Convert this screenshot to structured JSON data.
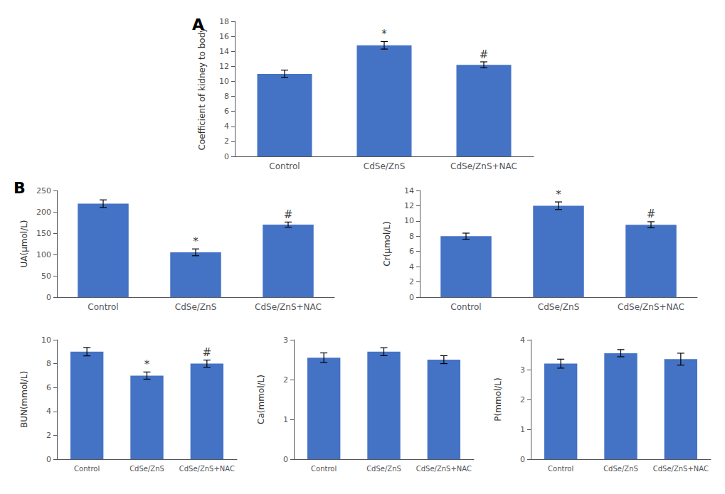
{
  "chart_data": [
    {
      "type": "bar",
      "title": "A",
      "categories": [
        "Control",
        "CdSe/ZnS",
        "CdSe/ZnS+NAC"
      ],
      "values": [
        11.0,
        14.8,
        12.2
      ],
      "errors": [
        0.5,
        0.5,
        0.4
      ],
      "color": "#4472C4",
      "ylabel": "Coefficient of kidney to body",
      "ylim": [
        0,
        18
      ],
      "yticks": [
        0,
        2,
        4,
        6,
        8,
        10,
        12,
        14,
        16,
        18
      ],
      "grid": false,
      "annotations": [
        {
          "text": "*",
          "x": "CdSe/ZnS"
        },
        {
          "text": "#",
          "x": "CdSe/ZnS+NAC"
        }
      ]
    },
    {
      "type": "bar",
      "title": "B",
      "categories": [
        "Control",
        "CdSe/ZnS",
        "CdSe/ZnS+NAC"
      ],
      "values": [
        219,
        105,
        170
      ],
      "errors": [
        9,
        8,
        6
      ],
      "color": "#4472C4",
      "ylabel": "UA(μmol/L)",
      "ylim": [
        0,
        250
      ],
      "yticks": [
        0,
        50,
        100,
        150,
        200,
        250
      ],
      "grid": false,
      "annotations": [
        {
          "text": "*",
          "x": "CdSe/ZnS"
        },
        {
          "text": "#",
          "x": "CdSe/ZnS+NAC"
        }
      ]
    },
    {
      "type": "bar",
      "categories": [
        "Control",
        "CdSe/ZnS",
        "CdSe/ZnS+NAC"
      ],
      "values": [
        8.0,
        12.0,
        9.5
      ],
      "errors": [
        0.4,
        0.5,
        0.4
      ],
      "color": "#4472C4",
      "ylabel": "Cr(μmol/L)",
      "ylim": [
        0,
        14
      ],
      "yticks": [
        0,
        2,
        4,
        6,
        8,
        10,
        12,
        14
      ],
      "grid": false,
      "annotations": [
        {
          "text": "*",
          "x": "CdSe/ZnS"
        },
        {
          "text": "#",
          "x": "CdSe/ZnS+NAC"
        }
      ]
    },
    {
      "type": "bar",
      "categories": [
        "Control",
        "CdSe/ZnS",
        "CdSe/ZnS+NAC"
      ],
      "values": [
        9.0,
        7.0,
        8.0
      ],
      "errors": [
        0.35,
        0.3,
        0.3
      ],
      "color": "#4472C4",
      "ylabel": "BUN(mmol/L)",
      "ylim": [
        0,
        10
      ],
      "yticks": [
        0,
        2,
        4,
        6,
        8,
        10
      ],
      "grid": false,
      "annotations": [
        {
          "text": "*",
          "x": "CdSe/ZnS"
        },
        {
          "text": "#",
          "x": "CdSe/ZnS+NAC"
        }
      ]
    },
    {
      "type": "bar",
      "categories": [
        "Control",
        "CdSe/ZnS",
        "CdSe/ZnS+NAC"
      ],
      "values": [
        2.55,
        2.7,
        2.5
      ],
      "errors": [
        0.12,
        0.1,
        0.1
      ],
      "color": "#4472C4",
      "ylabel": "Ca(mmol/L)",
      "ylim": [
        0,
        3
      ],
      "yticks": [
        0,
        1,
        2,
        3
      ],
      "grid": false
    },
    {
      "type": "bar",
      "categories": [
        "Control",
        "CdSe/ZnS",
        "CdSe/ZnS+NAC"
      ],
      "values": [
        3.2,
        3.55,
        3.35
      ],
      "errors": [
        0.15,
        0.12,
        0.2
      ],
      "color": "#4472C4",
      "ylabel": "P(mmol/L)",
      "ylim": [
        0,
        4
      ],
      "yticks": [
        0,
        1,
        2,
        3,
        4
      ],
      "grid": false
    }
  ]
}
